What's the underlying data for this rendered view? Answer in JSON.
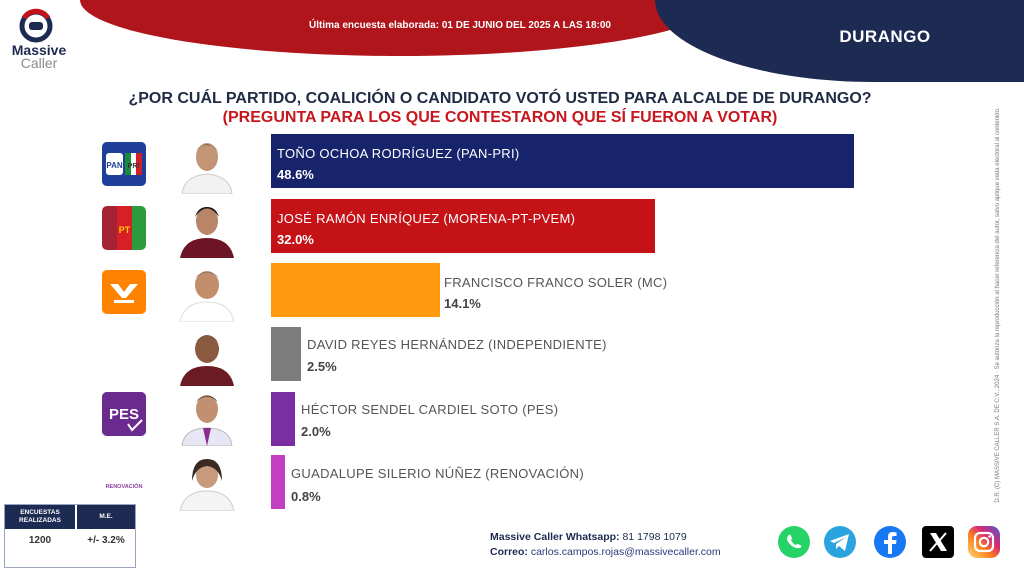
{
  "header": {
    "survey_date": "Última encuesta elaborada: 01 DE JUNIO DEL 2025 A LAS 18:00",
    "region": "DURANGO",
    "logo_line1": "Massive",
    "logo_line2": "Caller"
  },
  "question": "¿POR CUÁL PARTIDO, COALICIÓN O CANDIDATO VOTÓ USTED PARA ALCALDE DE DURANGO?",
  "subquestion": "(PREGUNTA PARA LOS QUE CONTESTARON QUE SÍ FUERON A VOTAR)",
  "chart_data": {
    "type": "bar",
    "categories": [
      "TOÑO OCHOA RODRÍGUEZ (PAN-PRI)",
      "JOSÉ RAMÓN ENRÍQUEZ (MORENA-PT-PVEM)",
      "FRANCISCO FRANCO SOLER (MC)",
      "DAVID REYES HERNÁNDEZ (INDEPENDIENTE)",
      "HÉCTOR SENDEL CARDIEL SOTO (PES)",
      "GUADALUPE SILERIO NÚÑEZ (RENOVACIÓN)"
    ],
    "values": [
      48.6,
      32.0,
      14.1,
      2.5,
      2.0,
      0.8
    ],
    "value_labels": [
      "48.6%",
      "32.0%",
      "14.1%",
      "2.5%",
      "2.0%",
      "0.8%"
    ],
    "colors": [
      "#17236b",
      "#c41217",
      "#ff9a0e",
      "#7d7d7d",
      "#7b2ea1",
      "#c23fc4"
    ],
    "orientation": "horizontal"
  },
  "parties": [
    {
      "icon": "pan-pri-logo-icon"
    },
    {
      "icon": "morena-pt-pvem-logo-icon"
    },
    {
      "icon": "mc-logo-icon"
    },
    {
      "icon": ""
    },
    {
      "icon": "pes-logo-icon",
      "text": "PES"
    },
    {
      "icon": "renovacion-logo-icon",
      "text": "RENOVACIÓN"
    }
  ],
  "stats": {
    "h1": "ENCUESTAS REALIZADAS",
    "h2": "M.E.",
    "v1": "1200",
    "v2": "+/- 3.2%"
  },
  "contact": {
    "whatsapp_label": "Massive Caller Whatsapp:",
    "whatsapp_number": "81 1798 1079",
    "email_label": "Correo:",
    "email": "carlos.campos.rojas@massivecaller.com"
  },
  "side_note": "D.R. (C) MASSIVE CALLER S.A. DE C.V., 2024 · Se autoriza la reproducción al hacer referencia del autor, salvo aplique veda electoral al contenido.",
  "social": [
    "whatsapp-icon",
    "telegram-icon",
    "facebook-icon",
    "x-icon",
    "instagram-icon"
  ]
}
